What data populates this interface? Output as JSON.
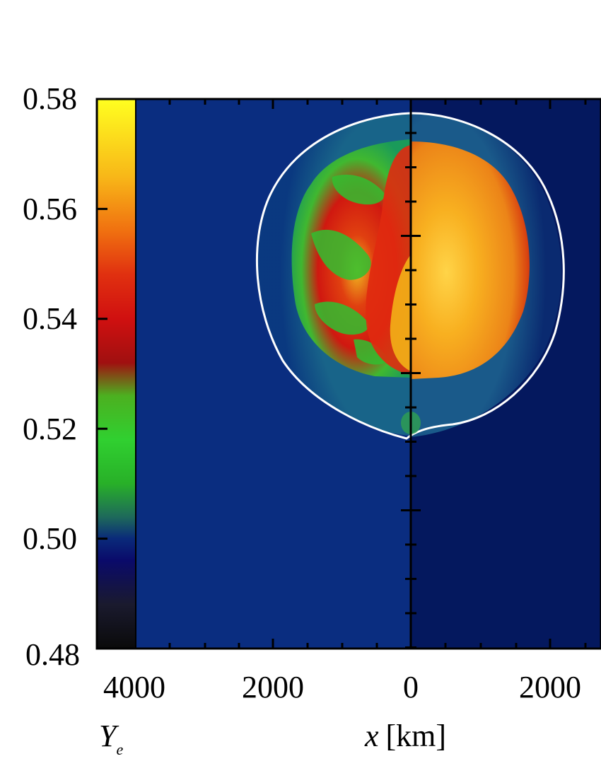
{
  "chart_data": {
    "type": "heatmap",
    "title": "",
    "colorbar": {
      "label_main": "Y",
      "label_sub": "e",
      "range": [
        0.48,
        0.58
      ],
      "ticks": [
        "0.58",
        "0.56",
        "0.54",
        "0.52",
        "0.50",
        "0.48"
      ],
      "colormap": [
        {
          "v": 0.48,
          "color": "#0a0a0a"
        },
        {
          "v": 0.488,
          "color": "#1a1a2e"
        },
        {
          "v": 0.496,
          "color": "#0a0a6a"
        },
        {
          "v": 0.5,
          "color": "#0a2a7a"
        },
        {
          "v": 0.504,
          "color": "#1e6a5a"
        },
        {
          "v": 0.51,
          "color": "#28b028"
        },
        {
          "v": 0.518,
          "color": "#30d030"
        },
        {
          "v": 0.526,
          "color": "#4cb020"
        },
        {
          "v": 0.532,
          "color": "#a01010"
        },
        {
          "v": 0.54,
          "color": "#d01010"
        },
        {
          "v": 0.548,
          "color": "#e03010"
        },
        {
          "v": 0.556,
          "color": "#f07010"
        },
        {
          "v": 0.566,
          "color": "#f8b818"
        },
        {
          "v": 0.58,
          "color": "#ffff20"
        }
      ]
    },
    "x_axis": {
      "label_var": "x",
      "label_unit": "[km]",
      "tick_labels": [
        "4000",
        "2000",
        "0",
        "2000"
      ],
      "tick_values": [
        -4000,
        -2000,
        0,
        2000
      ]
    },
    "left_panel": {
      "background": "#0a2d80",
      "ejecta_outer": "#1a9a5a",
      "ejecta_inner": "#d81810",
      "ejecta_mix": "#30c030"
    },
    "right_panel": {
      "background": "#04185e",
      "ejecta_outer": "#1a5a8a",
      "ejecta_inner": "#f09018",
      "ejecta_hot": "#ffd040"
    },
    "shock_color": "#ffffff"
  }
}
